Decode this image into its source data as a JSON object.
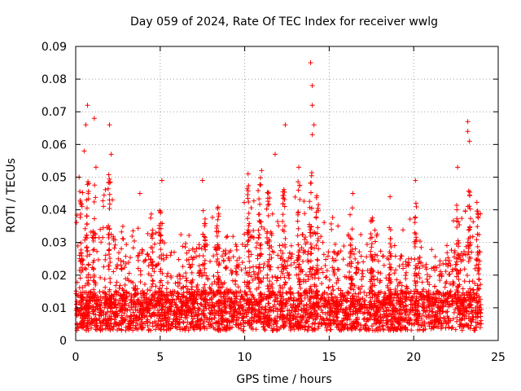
{
  "chart_data": {
    "type": "scatter",
    "title": "Day 059 of 2024, Rate Of TEC Index for receiver wwlg",
    "xlabel": "GPS time / hours",
    "ylabel": "ROTI / TECUs",
    "xlim": [
      0,
      25
    ],
    "ylim": [
      0,
      0.09
    ],
    "x_ticks": [
      0,
      5,
      10,
      15,
      20,
      25
    ],
    "x_tick_labels": [
      "0",
      "5",
      "10",
      "15",
      "20",
      "25"
    ],
    "y_ticks": [
      0,
      0.01,
      0.02,
      0.03,
      0.04,
      0.05,
      0.06,
      0.07,
      0.08,
      0.09
    ],
    "y_tick_labels": [
      "0",
      "0.01",
      "0.02",
      "0.03",
      "0.04",
      "0.05",
      "0.06",
      "0.07",
      "0.08",
      "0.09"
    ],
    "grid": true,
    "marker": "plus",
    "series": [
      {
        "name": "ROTI",
        "color": "#ff0000",
        "x_range": [
          0,
          24
        ],
        "typical_range": [
          0.002,
          0.035
        ],
        "peaks": [
          {
            "x": 0.2,
            "y": 0.05
          },
          {
            "x": 0.5,
            "y": 0.058
          },
          {
            "x": 0.6,
            "y": 0.066
          },
          {
            "x": 0.7,
            "y": 0.072
          },
          {
            "x": 1.1,
            "y": 0.068
          },
          {
            "x": 1.2,
            "y": 0.053
          },
          {
            "x": 2.0,
            "y": 0.066
          },
          {
            "x": 2.1,
            "y": 0.057
          },
          {
            "x": 3.8,
            "y": 0.045
          },
          {
            "x": 5.1,
            "y": 0.049
          },
          {
            "x": 7.5,
            "y": 0.049
          },
          {
            "x": 10.2,
            "y": 0.051
          },
          {
            "x": 11.0,
            "y": 0.052
          },
          {
            "x": 11.8,
            "y": 0.057
          },
          {
            "x": 12.4,
            "y": 0.066
          },
          {
            "x": 13.2,
            "y": 0.053
          },
          {
            "x": 13.9,
            "y": 0.085
          },
          {
            "x": 14.0,
            "y": 0.078
          },
          {
            "x": 14.0,
            "y": 0.072
          },
          {
            "x": 14.1,
            "y": 0.066
          },
          {
            "x": 14.0,
            "y": 0.063
          },
          {
            "x": 16.4,
            "y": 0.045
          },
          {
            "x": 18.6,
            "y": 0.044
          },
          {
            "x": 20.1,
            "y": 0.049
          },
          {
            "x": 22.6,
            "y": 0.053
          },
          {
            "x": 23.2,
            "y": 0.067
          },
          {
            "x": 23.2,
            "y": 0.064
          },
          {
            "x": 23.3,
            "y": 0.061
          }
        ]
      }
    ]
  }
}
